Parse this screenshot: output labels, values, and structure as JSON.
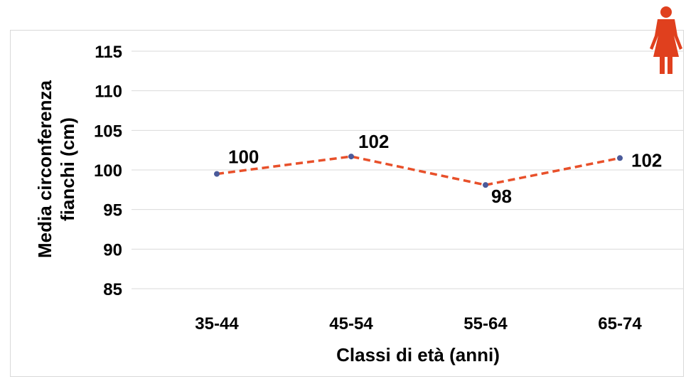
{
  "chart_data": {
    "type": "line",
    "categories": [
      "35-44",
      "45-54",
      "55-64",
      "65-74"
    ],
    "series": [
      {
        "values": [
          99.5,
          101.7,
          98.1,
          101.5
        ],
        "labels": [
          "100",
          "102",
          "98",
          "102"
        ]
      }
    ],
    "xlabel": "Classi di età (anni)",
    "ylabel_line1": "Media circonferenza",
    "ylabel_line2": "fianchi (cm)",
    "ylim": [
      85,
      115
    ],
    "yticks": [
      85,
      90,
      95,
      100,
      105,
      110,
      115
    ],
    "grid": true,
    "line_style": "dashed",
    "colors": {
      "line": "#e8502a",
      "marker": "#4a5a9a",
      "grid": "#d9d9d9",
      "icon": "#e0401e"
    },
    "icon": "woman-icon"
  }
}
